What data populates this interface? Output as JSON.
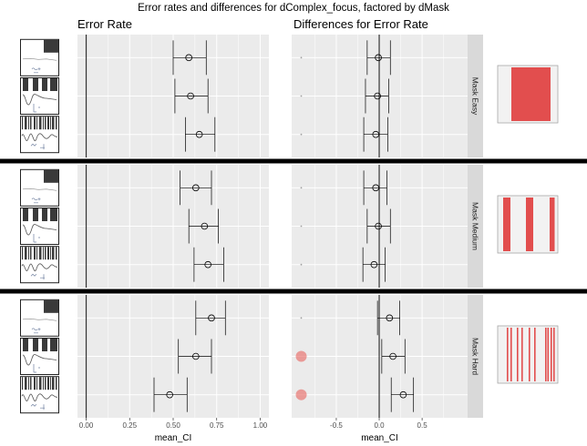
{
  "title": "Error rates and differences for dComplex_focus, factored by dMask",
  "facet_labels": [
    "Mask Easy",
    "Mask Medium",
    "Mask Hard"
  ],
  "colors": {
    "panel_background": "#EBEBEB",
    "gridline": "#FFFFFF",
    "strip_background": "#D9D9D9",
    "reference_line": "#333333",
    "separator": "#000000",
    "highlight_marker": "#E8635E",
    "mask_bar": "#E24E4E",
    "mask_background": "#F2F2F2"
  },
  "chart_data": [
    {
      "type": "scatter",
      "title": "Error Rate",
      "xlabel": "mean_CI",
      "xlim": [
        -0.05,
        1.05
      ],
      "xticks": [
        "0.00",
        "0.25",
        "0.50",
        "0.75",
        "1.00"
      ],
      "reference_line": 0,
      "grid": true,
      "facets": [
        [
          {
            "mean": 0.59,
            "low": 0.5,
            "high": 0.69
          },
          {
            "mean": 0.6,
            "low": 0.51,
            "high": 0.7
          },
          {
            "mean": 0.65,
            "low": 0.57,
            "high": 0.74
          }
        ],
        [
          {
            "mean": 0.63,
            "low": 0.54,
            "high": 0.72
          },
          {
            "mean": 0.68,
            "low": 0.59,
            "high": 0.76
          },
          {
            "mean": 0.7,
            "low": 0.62,
            "high": 0.79
          }
        ],
        [
          {
            "mean": 0.72,
            "low": 0.63,
            "high": 0.8
          },
          {
            "mean": 0.63,
            "low": 0.53,
            "high": 0.72
          },
          {
            "mean": 0.48,
            "low": 0.39,
            "high": 0.58
          }
        ]
      ]
    },
    {
      "type": "scatter",
      "title": "Differences for Error Rate",
      "xlabel": "mean_CI",
      "xlim": [
        -1.02,
        1.03
      ],
      "xticks": [
        "-0.5",
        "0.0",
        "0.5"
      ],
      "reference_line": 0,
      "grid": true,
      "facets": [
        [
          {
            "mean": -0.01,
            "low": -0.14,
            "high": 0.13,
            "significant": false
          },
          {
            "mean": -0.02,
            "low": -0.16,
            "high": 0.11,
            "significant": false
          },
          {
            "mean": -0.04,
            "low": -0.18,
            "high": 0.1,
            "significant": false
          }
        ],
        [
          {
            "mean": -0.04,
            "low": -0.18,
            "high": 0.09,
            "significant": false
          },
          {
            "mean": -0.01,
            "low": -0.14,
            "high": 0.13,
            "significant": false
          },
          {
            "mean": -0.06,
            "low": -0.19,
            "high": 0.07,
            "significant": false
          }
        ],
        [
          {
            "mean": 0.12,
            "low": -0.02,
            "high": 0.24,
            "significant": false
          },
          {
            "mean": 0.16,
            "low": 0.03,
            "high": 0.3,
            "significant": true
          },
          {
            "mean": 0.28,
            "low": 0.14,
            "high": 0.4,
            "significant": true
          }
        ]
      ]
    }
  ]
}
